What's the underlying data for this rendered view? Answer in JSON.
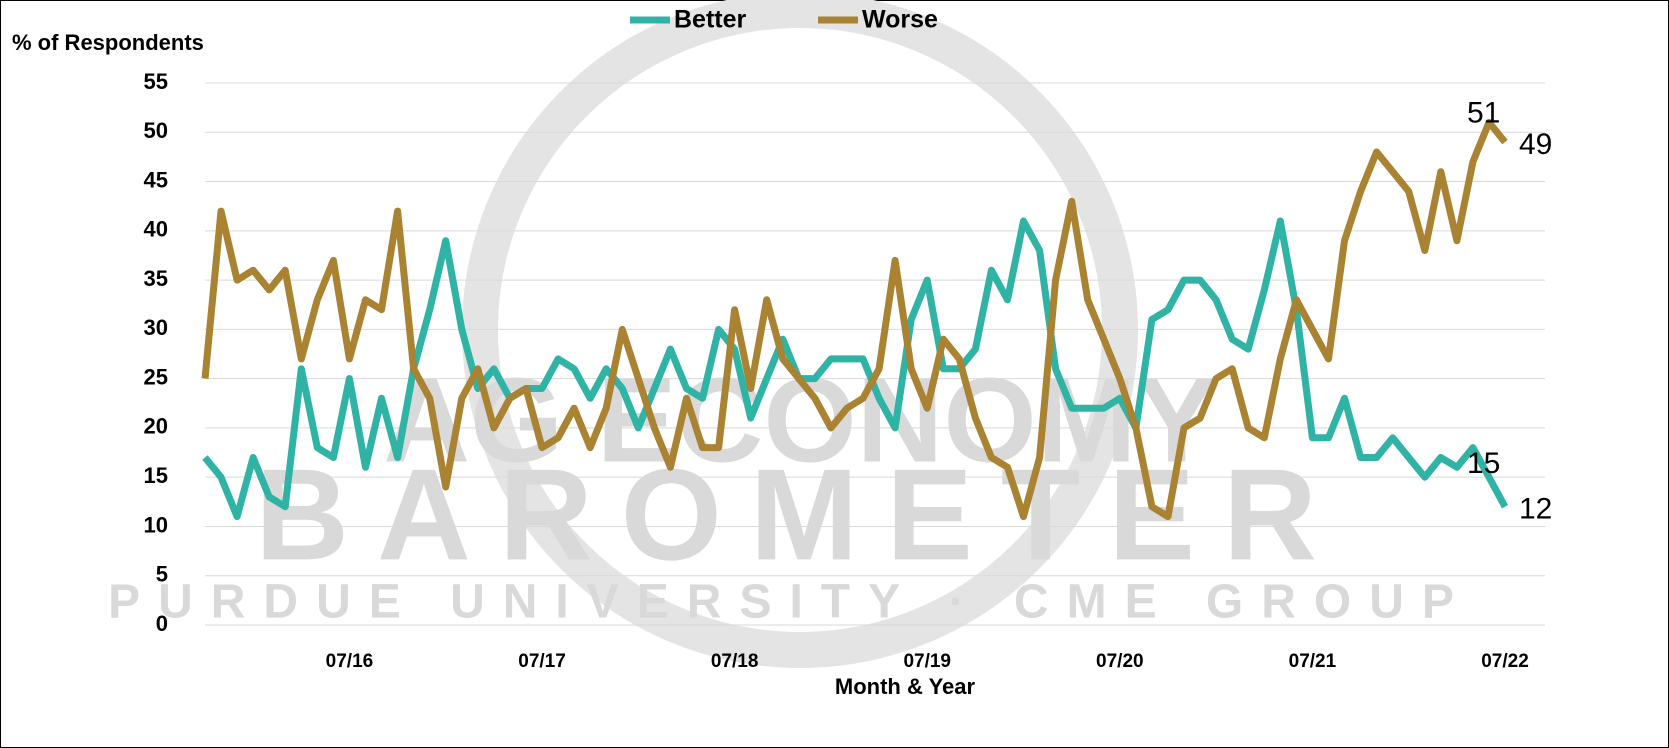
{
  "chart_data": {
    "type": "line",
    "legend_labels_note_free": null,
    "title_y": "% of Respondents",
    "x_label": "Month & Year",
    "watermark": [
      "AG ECONOMY",
      "BAROMETER",
      "PURDUE UNIVERSITY · CME GROUP"
    ],
    "legend": "top",
    "grid": true,
    "ylim": [
      0,
      55
    ],
    "yticks": [
      0,
      5,
      10,
      15,
      20,
      25,
      30,
      35,
      40,
      45,
      50,
      55
    ],
    "categories": [
      null,
      null,
      null,
      null,
      null,
      null,
      null,
      null,
      null,
      "07/16",
      null,
      null,
      null,
      null,
      null,
      null,
      null,
      null,
      null,
      null,
      null,
      "07/17",
      null,
      null,
      null,
      null,
      null,
      null,
      null,
      null,
      null,
      null,
      null,
      "07/18",
      null,
      null,
      null,
      null,
      null,
      null,
      null,
      null,
      null,
      null,
      null,
      "07/19",
      null,
      null,
      null,
      null,
      null,
      null,
      null,
      null,
      null,
      null,
      null,
      "07/20",
      null,
      null,
      null,
      null,
      null,
      null,
      null,
      null,
      null,
      null,
      null,
      "07/21",
      null,
      null,
      null,
      null,
      null,
      null,
      null,
      null,
      null,
      null,
      null,
      "07/22"
    ],
    "series": [
      {
        "name": "Better",
        "color": "#2fb3a4",
        "values": [
          17,
          15,
          11,
          17,
          13,
          12,
          26,
          18,
          17,
          25,
          16,
          23,
          17,
          26,
          32,
          39,
          30,
          24,
          26,
          23,
          24,
          24,
          27,
          26,
          23,
          26,
          24,
          20,
          24,
          28,
          24,
          23,
          30,
          28,
          21,
          25,
          29,
          25,
          25,
          27,
          27,
          27,
          23,
          20,
          31,
          35,
          26,
          26,
          28,
          36,
          33,
          41,
          38,
          26,
          22,
          22,
          22,
          23,
          20,
          31,
          32,
          35,
          35,
          33,
          29,
          28,
          34,
          41,
          32,
          19,
          19,
          23,
          17,
          17,
          19,
          17,
          15,
          17,
          16,
          18,
          15,
          12
        ]
      },
      {
        "name": "Worse",
        "color": "#a98232",
        "values": [
          25,
          42,
          35,
          36,
          34,
          36,
          27,
          33,
          37,
          27,
          33,
          32,
          42,
          26,
          23,
          14,
          23,
          26,
          20,
          23,
          24,
          18,
          19,
          22,
          18,
          22,
          30,
          25,
          20,
          16,
          23,
          18,
          18,
          32,
          24,
          33,
          27,
          25,
          23,
          20,
          22,
          23,
          26,
          37,
          26,
          22,
          29,
          27,
          21,
          17,
          16,
          11,
          17,
          35,
          43,
          33,
          29,
          25,
          20,
          12,
          11,
          20,
          21,
          25,
          26,
          20,
          19,
          27,
          33,
          30,
          27,
          39,
          44,
          48,
          46,
          44,
          38,
          46,
          39,
          47,
          51,
          49
        ]
      }
    ]
  }
}
